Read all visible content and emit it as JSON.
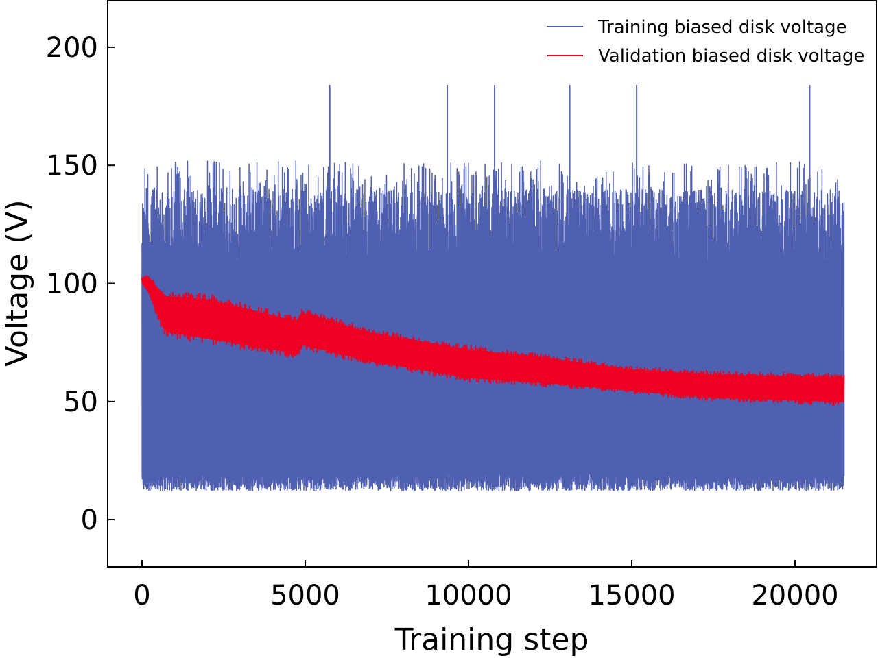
{
  "chart_data": {
    "type": "line",
    "title": "",
    "xlabel": "Training step",
    "ylabel": "Voltage (V)",
    "xlim": [
      -1050,
      22500
    ],
    "ylim": [
      -20,
      220
    ],
    "x_ticks": [
      0,
      5000,
      10000,
      15000,
      20000
    ],
    "y_ticks": [
      0,
      50,
      100,
      150,
      200
    ],
    "x_tick_labels": [
      "0",
      "5000",
      "10000",
      "15000",
      "20000"
    ],
    "y_tick_labels": [
      "0",
      "50",
      "100",
      "150",
      "200"
    ],
    "grid": false,
    "legend_position": "top-right",
    "x_range": [
      0,
      21500
    ],
    "series": [
      {
        "name": "Training biased disk voltage",
        "color": "#5060b0",
        "kind": "oscillating-band",
        "x": [
          0,
          21500
        ],
        "lower_envelope": [
          13,
          12
        ],
        "upper_envelope": [
          152,
          154
        ],
        "typical_low": 15,
        "typical_high": 140,
        "spike_max": 184,
        "spike_x": [
          5750,
          9350,
          10800,
          13100,
          15150,
          20450
        ]
      },
      {
        "name": "Validation biased disk voltage",
        "color": "#ee0022",
        "kind": "noisy-band",
        "x": [
          0,
          200,
          700,
          2000,
          4800,
          4850,
          7000,
          10000,
          12500,
          15000,
          17500,
          21500
        ],
        "upper": [
          103,
          104,
          97,
          96,
          86,
          90,
          81,
          74,
          70,
          65,
          63,
          62
        ],
        "lower": [
          100,
          95,
          77,
          74,
          68,
          72,
          65,
          58,
          56,
          53,
          50,
          48
        ]
      }
    ]
  }
}
